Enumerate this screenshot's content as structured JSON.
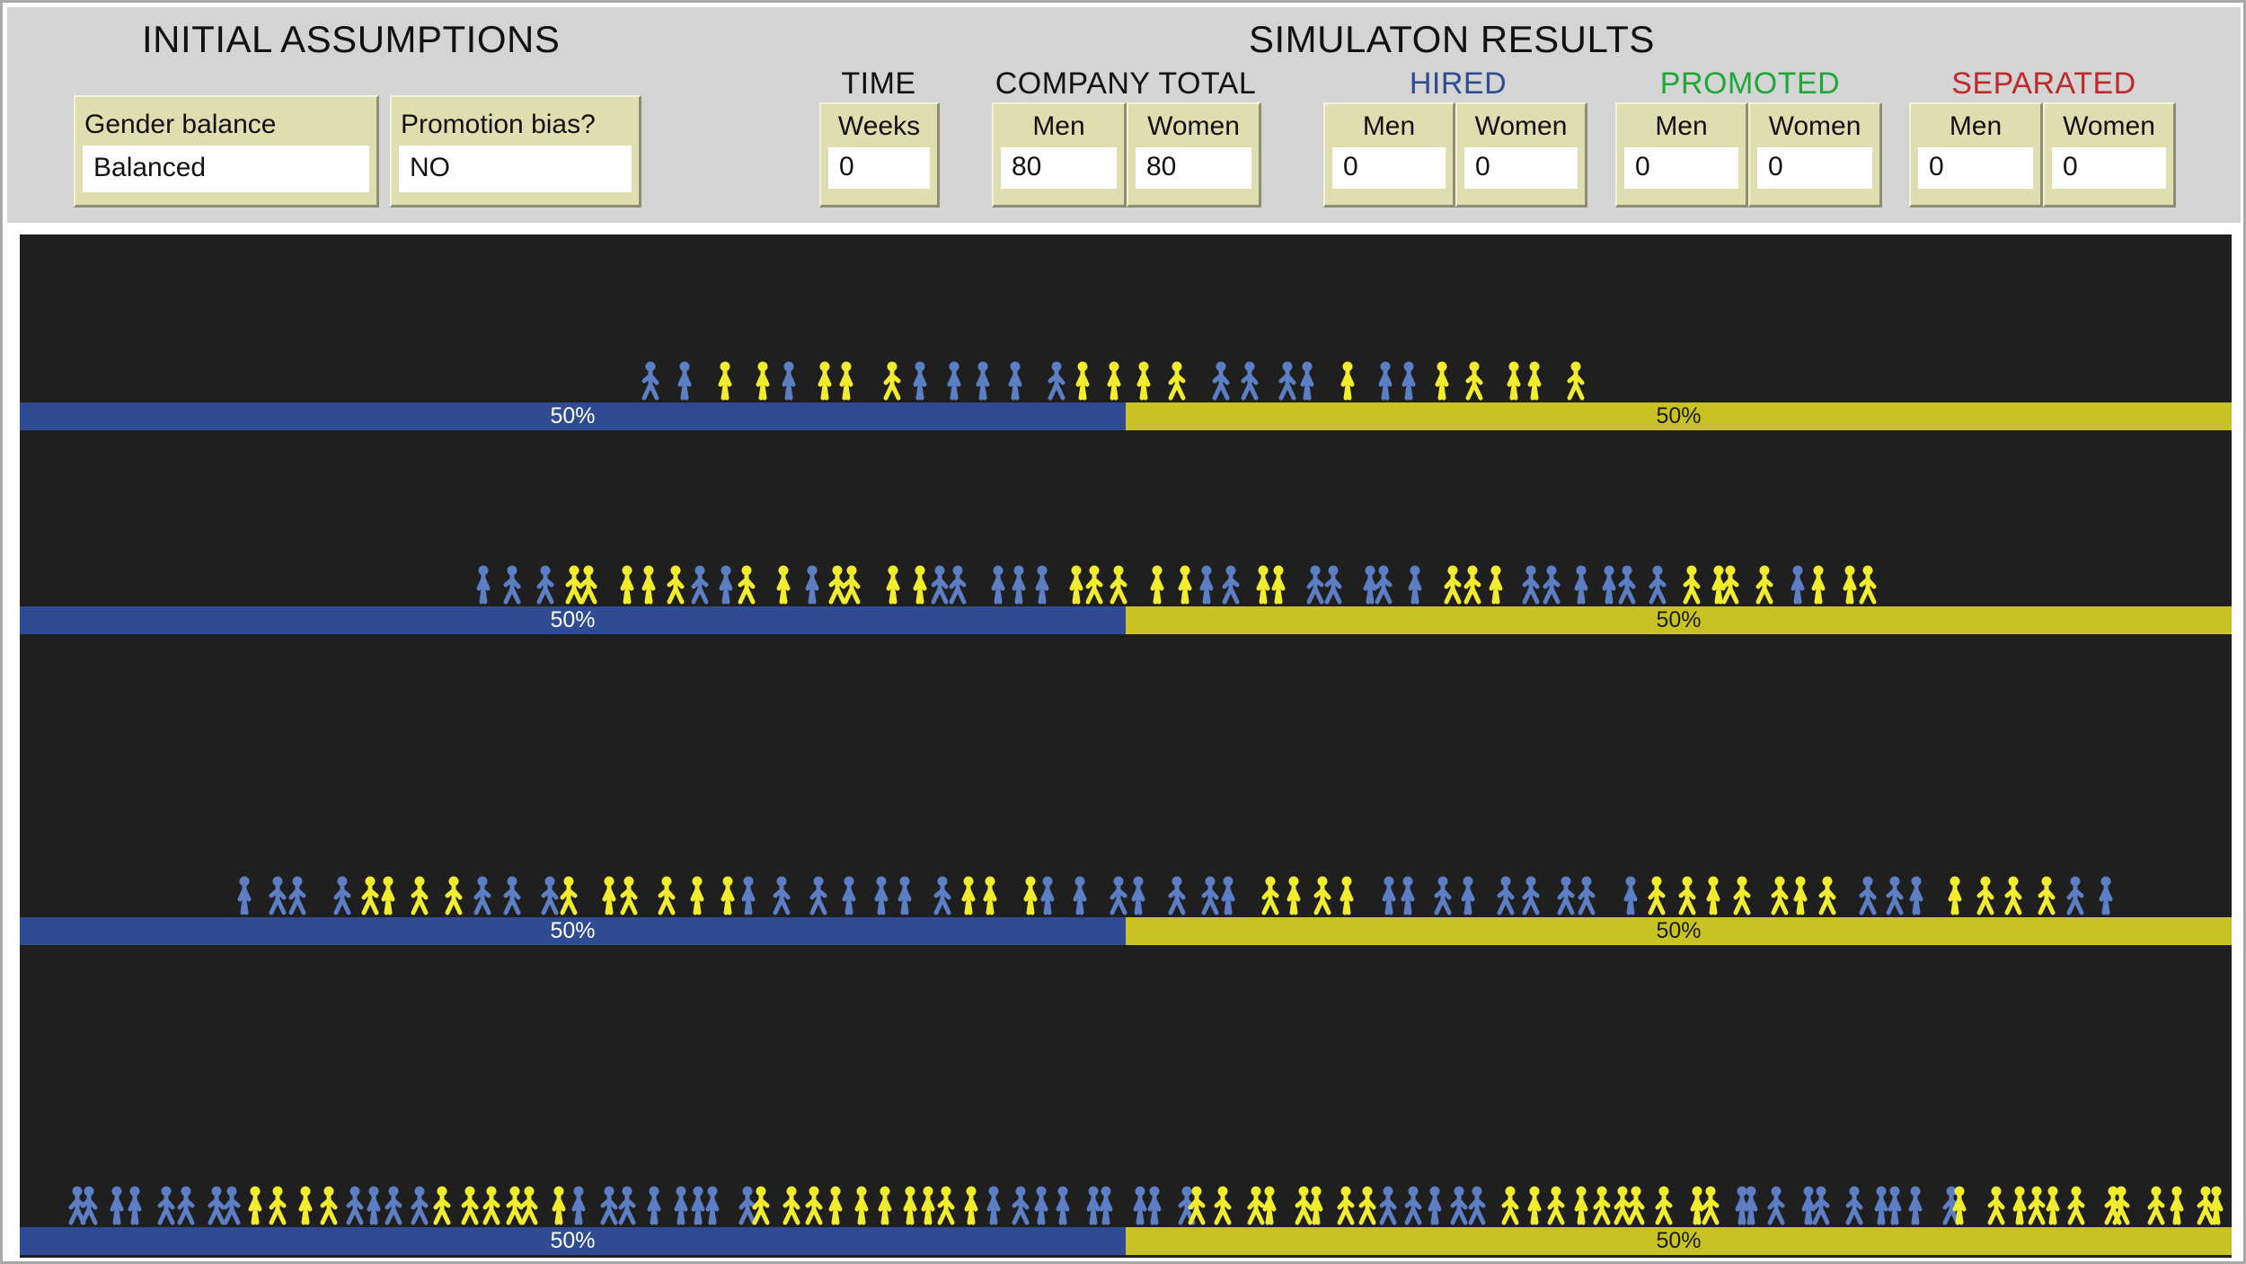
{
  "headings": {
    "initial": "INITIAL ASSUMPTIONS",
    "results": "SIMULATON RESULTS"
  },
  "assumptions": {
    "gender_balance": {
      "label": "Gender balance",
      "value": "Balanced"
    },
    "promotion_bias": {
      "label": "Promotion bias?",
      "value": "NO"
    }
  },
  "groups": {
    "time": "TIME",
    "company_total": "COMPANY TOTAL",
    "hired": "HIRED",
    "promoted": "PROMOTED",
    "separated": "SEPARATED"
  },
  "monitors": {
    "weeks": {
      "label": "Weeks",
      "value": "0"
    },
    "total_men": {
      "label": "Men",
      "value": "80"
    },
    "total_women": {
      "label": "Women",
      "value": "80"
    },
    "hired_men": {
      "label": "Men",
      "value": "0"
    },
    "hired_women": {
      "label": "Women",
      "value": "0"
    },
    "promoted_men": {
      "label": "Men",
      "value": "0"
    },
    "promoted_women": {
      "label": "Women",
      "value": "0"
    },
    "separated_men": {
      "label": "Men",
      "value": "0"
    },
    "separated_women": {
      "label": "Women",
      "value": "0"
    }
  },
  "colors": {
    "hired": "#2f4c93",
    "promoted": "#1fa83a",
    "separated": "#c0282c",
    "men": "#5b7ec5",
    "women": "#f2ec2e",
    "men_bar": "#2f4c93",
    "women_bar": "#c8c224",
    "world_background": "#1f1f1f"
  },
  "levels": [
    {
      "men_label": "50%",
      "women_label": "50%",
      "men_share": 0.5,
      "people": "bbyybyyybbbbbyyyybbbbybbyyyyy"
    },
    {
      "men_label": "50%",
      "women_label": "50%",
      "men_share": 0.5,
      "people": "bbbyyyyybbyybyyyybbbbbyyyyybbyybbbbbyyybbbbbbyyyybyyy"
    },
    {
      "men_label": "50%",
      "women_label": "50%",
      "men_share": 0.5,
      "people": "bbbbyyyybbbyyyyyybbbbbbbyyybbbbbbbyyyybbbbbbbbbyyyyyyybbbyyyybb"
    },
    {
      "men_label": "50%",
      "women_label": "50%",
      "men_share": 0.5,
      "people": "bbbbbbbbyyyybbbbyyyyyybbbbbbbbyyyyyyyyyybbbbbbbbbyyyyyyyybbbbbyyyyyyyyyybbbbbbbbbbyyyyyyyyyyyy"
    }
  ]
}
